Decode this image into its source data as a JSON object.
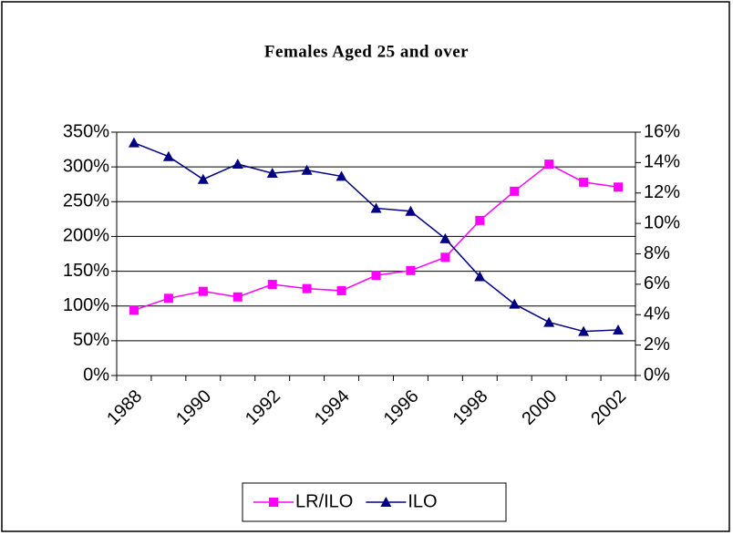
{
  "chart_data": {
    "type": "line",
    "title": "Females Aged 25 and over",
    "categories": [
      "1988",
      null,
      "1990",
      null,
      "1992",
      null,
      "1994",
      null,
      "1996",
      null,
      "1998",
      null,
      "2000",
      null,
      "2002"
    ],
    "series": [
      {
        "name": "LR/ILO",
        "color": "#ff00ff",
        "marker": "square",
        "values": [
          94,
          111,
          121,
          113,
          131,
          125,
          122,
          144,
          151,
          170,
          223,
          265,
          304,
          278,
          271
        ]
      },
      {
        "name": "ILO",
        "color": "#000080",
        "marker": "triangle",
        "axis": "y2",
        "values": [
          15.3,
          14.4,
          12.9,
          13.9,
          13.3,
          13.5,
          13.1,
          11.0,
          10.8,
          9.0,
          6.5,
          4.7,
          3.5,
          2.9,
          3.0
        ]
      }
    ],
    "ylim": [
      0,
      350
    ],
    "yticks": [
      {
        "value": 0,
        "label": "0%"
      },
      {
        "value": 50,
        "label": "50%"
      },
      {
        "value": 100,
        "label": "100%"
      },
      {
        "value": 150,
        "label": "150%"
      },
      {
        "value": 200,
        "label": "200%"
      },
      {
        "value": 250,
        "label": "250%"
      },
      {
        "value": 300,
        "label": "300%"
      },
      {
        "value": 350,
        "label": "350%"
      }
    ],
    "y2lim": [
      0,
      16
    ],
    "y2ticks": [
      {
        "value": 0,
        "label": "0%"
      },
      {
        "value": 2,
        "label": "2%"
      },
      {
        "value": 4,
        "label": "4%"
      },
      {
        "value": 6,
        "label": "6%"
      },
      {
        "value": 8,
        "label": "8%"
      },
      {
        "value": 10,
        "label": "10%"
      },
      {
        "value": 12,
        "label": "12%"
      },
      {
        "value": 14,
        "label": "14%"
      },
      {
        "value": 16,
        "label": "16%"
      }
    ],
    "grid": true,
    "legend": "bottom"
  }
}
